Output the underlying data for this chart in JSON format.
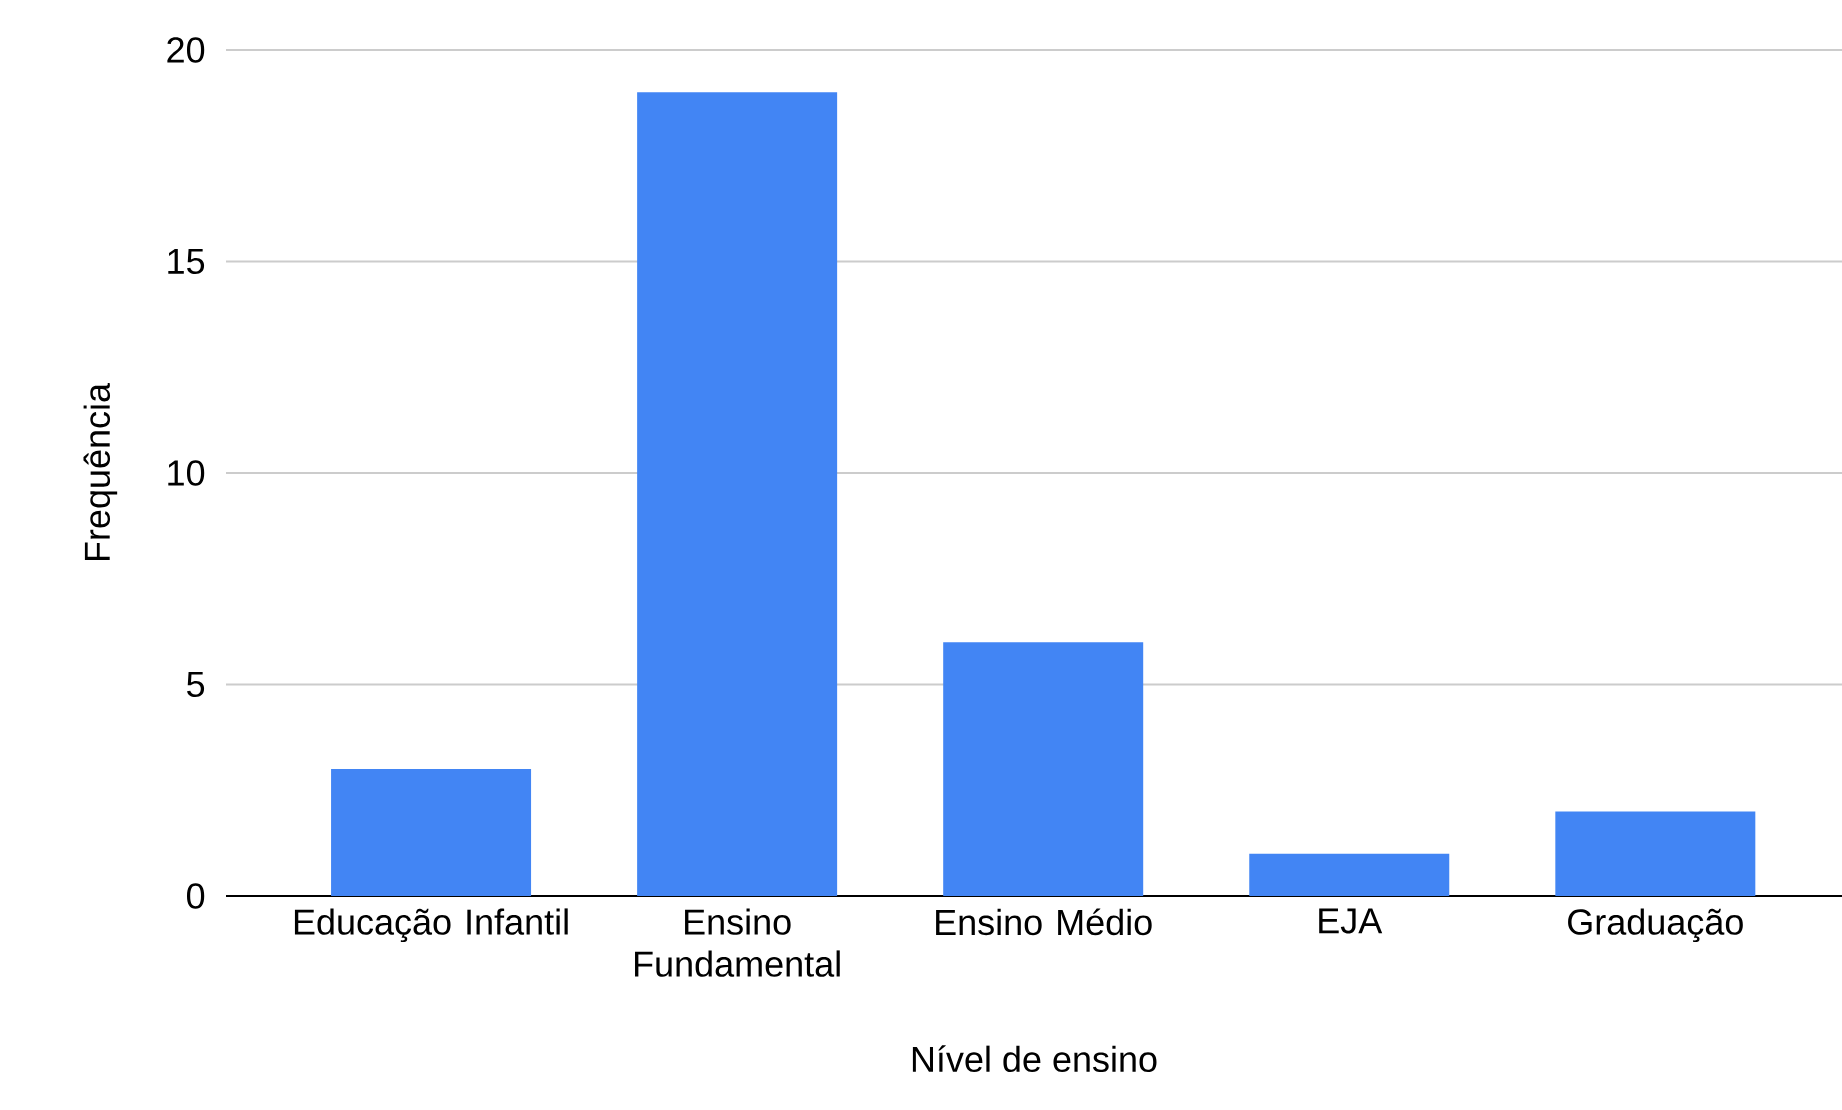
{
  "chart_data": {
    "type": "bar",
    "xlabel": "Nível de ensino",
    "ylabel": "Frequência",
    "categories": [
      "Educação Infantil",
      "Ensino Fundamental",
      "Ensino Médio",
      "EJA",
      "Graduação"
    ],
    "values": [
      3,
      19,
      6,
      1,
      2
    ],
    "color": "#4285f4",
    "ylim": [
      0,
      20
    ],
    "yticks": [
      0,
      5,
      10,
      15,
      20
    ],
    "grid": "y"
  }
}
